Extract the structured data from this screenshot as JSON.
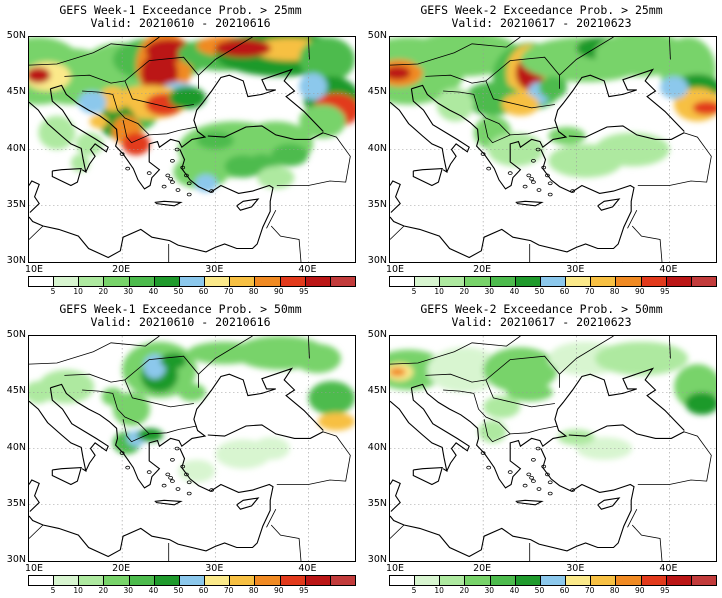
{
  "palette": [
    "#ffffff",
    "#d8f5d0",
    "#aee9a0",
    "#78d36a",
    "#4dbb4d",
    "#1f9a2c",
    "#8cc8ec",
    "#fbe98a",
    "#f7c043",
    "#f08a23",
    "#e23a1c",
    "#bb1616",
    "#c23b3b"
  ],
  "colorbar_labels": [
    "5",
    "10",
    "20",
    "30",
    "40",
    "50",
    "60",
    "70",
    "80",
    "90",
    "95"
  ],
  "lat_labels": [
    "50N",
    "45N",
    "40N",
    "35N",
    "30N"
  ],
  "lon_labels": [
    "10E",
    "20E",
    "30E",
    "40E"
  ],
  "panels": [
    {
      "title": "GEFS Week-1 Exceedance Prob. > 25mm",
      "valid": "Valid: 20210610 - 20210616"
    },
    {
      "title": "GEFS Week-2 Exceedance Prob. > 25mm",
      "valid": "Valid: 20210617 - 20210623"
    },
    {
      "title": "GEFS Week-1 Exceedance Prob. > 50mm",
      "valid": "Valid: 20210610 - 20210616"
    },
    {
      "title": "GEFS Week-2 Exceedance Prob. > 50mm",
      "valid": "Valid: 20210617 - 20210623"
    }
  ]
}
